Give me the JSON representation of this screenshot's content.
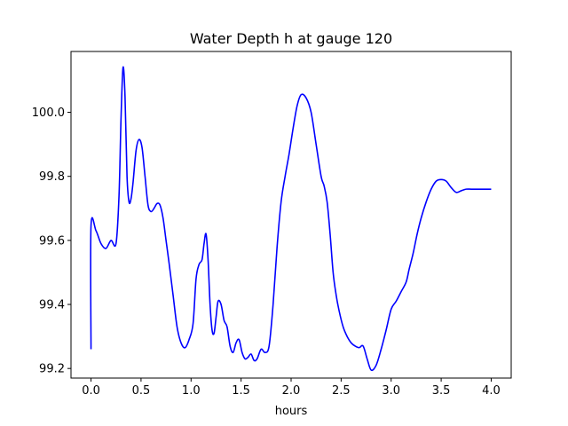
{
  "chart_data": {
    "type": "line",
    "title": "Water Depth h at gauge 120",
    "xlabel": "hours",
    "ylabel": "",
    "xlim": [
      -0.2,
      4.2
    ],
    "ylim": [
      99.17,
      100.19
    ],
    "xticks": [
      0.0,
      0.5,
      1.0,
      1.5,
      2.0,
      2.5,
      3.0,
      3.5,
      4.0
    ],
    "xtick_labels": [
      "0.0",
      "0.5",
      "1.0",
      "1.5",
      "2.0",
      "2.5",
      "3.0",
      "3.5",
      "4.0"
    ],
    "yticks": [
      99.2,
      99.4,
      99.6,
      99.8,
      100.0
    ],
    "ytick_labels": [
      "99.2",
      "99.4",
      "99.6",
      "99.8",
      "100.0"
    ],
    "grid": false,
    "series": [
      {
        "color": "#0000ff",
        "x": [
          0.0,
          0.0,
          0.05,
          0.1,
          0.15,
          0.2,
          0.25,
          0.28,
          0.3,
          0.32,
          0.34,
          0.36,
          0.38,
          0.4,
          0.42,
          0.45,
          0.48,
          0.51,
          0.54,
          0.57,
          0.6,
          0.63,
          0.66,
          0.69,
          0.72,
          0.75,
          0.78,
          0.82,
          0.86,
          0.9,
          0.94,
          0.98,
          1.02,
          1.05,
          1.08,
          1.11,
          1.13,
          1.15,
          1.17,
          1.19,
          1.21,
          1.23,
          1.25,
          1.27,
          1.3,
          1.33,
          1.36,
          1.39,
          1.42,
          1.45,
          1.48,
          1.51,
          1.54,
          1.57,
          1.6,
          1.63,
          1.66,
          1.7,
          1.74,
          1.78,
          1.82,
          1.86,
          1.9,
          1.94,
          1.98,
          2.02,
          2.06,
          2.1,
          2.15,
          2.2,
          2.25,
          2.3,
          2.33,
          2.36,
          2.39,
          2.42,
          2.45,
          2.48,
          2.52,
          2.56,
          2.6,
          2.64,
          2.68,
          2.72,
          2.76,
          2.8,
          2.85,
          2.9,
          2.95,
          3.0,
          3.05,
          3.1,
          3.15,
          3.18,
          3.22,
          3.26,
          3.3,
          3.35,
          3.4,
          3.45,
          3.5,
          3.55,
          3.6,
          3.65,
          3.7,
          3.75,
          3.8,
          3.85,
          3.9,
          3.95,
          4.0
        ],
        "y": [
          99.26,
          99.645,
          99.63,
          99.59,
          99.575,
          99.6,
          99.59,
          99.74,
          99.98,
          100.14,
          100.05,
          99.8,
          99.72,
          99.73,
          99.78,
          99.88,
          99.915,
          99.89,
          99.8,
          99.71,
          99.69,
          99.7,
          99.715,
          99.71,
          99.67,
          99.6,
          99.53,
          99.43,
          99.33,
          99.28,
          99.265,
          99.29,
          99.34,
          99.48,
          99.525,
          99.54,
          99.59,
          99.62,
          99.54,
          99.4,
          99.32,
          99.31,
          99.36,
          99.41,
          99.4,
          99.35,
          99.33,
          99.27,
          99.25,
          99.28,
          99.29,
          99.25,
          99.23,
          99.235,
          99.245,
          99.225,
          99.23,
          99.26,
          99.25,
          99.27,
          99.4,
          99.58,
          99.72,
          99.8,
          99.87,
          99.95,
          100.02,
          100.055,
          100.045,
          100.0,
          99.9,
          99.8,
          99.77,
          99.72,
          99.62,
          99.5,
          99.43,
          99.38,
          99.33,
          99.3,
          99.28,
          99.27,
          99.265,
          99.27,
          99.23,
          99.195,
          99.21,
          99.26,
          99.32,
          99.385,
          99.41,
          99.44,
          99.47,
          99.51,
          99.56,
          99.62,
          99.67,
          99.72,
          99.76,
          99.785,
          99.79,
          99.785,
          99.765,
          99.75,
          99.755,
          99.76,
          99.76,
          99.76,
          99.76,
          99.76,
          99.76
        ]
      }
    ]
  }
}
